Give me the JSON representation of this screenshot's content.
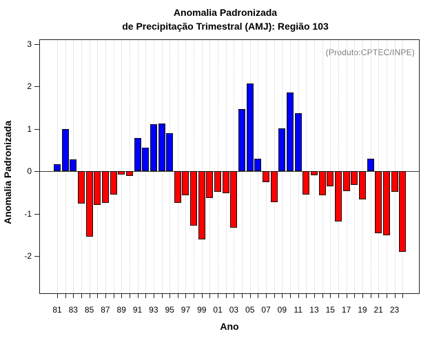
{
  "title": {
    "line1": "Anomalia Padronizada",
    "line2": "de Precipitação Trimestral (AMJ): Região 103"
  },
  "annotation": "(Produto:CPTEC/INPE)",
  "axes": {
    "y_label": "Anomalia Padronizada",
    "x_label": "Ano",
    "y_ticks": [
      3,
      2,
      1,
      0,
      -1,
      -2
    ],
    "x_tick_labels": [
      "81",
      "83",
      "85",
      "87",
      "89",
      "91",
      "93",
      "95",
      "97",
      "99",
      "01",
      "03",
      "05",
      "07",
      "09",
      "11",
      "13",
      "15",
      "17",
      "19",
      "21",
      "23"
    ]
  },
  "colors": {
    "positive": "#0000FF",
    "negative": "#FF0000",
    "annotation": "#7a7a7a",
    "grid": "#d2d2d2",
    "axis": "#222222"
  },
  "chart_data": {
    "type": "bar",
    "title": "Anomalia Padronizada de Precipitação Trimestral (AMJ): Região 103",
    "xlabel": "Ano",
    "ylabel": "Anomalia Padronizada",
    "ylim": [
      -2.9,
      3.1
    ],
    "grid": "vertical-dotted",
    "legend_position": "none",
    "x": [
      1981,
      1982,
      1983,
      1984,
      1985,
      1986,
      1987,
      1988,
      1989,
      1990,
      1991,
      1992,
      1993,
      1994,
      1995,
      1996,
      1997,
      1998,
      1999,
      2000,
      2001,
      2002,
      2003,
      2004,
      2005,
      2006,
      2007,
      2008,
      2009,
      2010,
      2011,
      2012,
      2013,
      2014,
      2015,
      2016,
      2017,
      2018,
      2019,
      2020,
      2021,
      2022,
      2023,
      2024
    ],
    "values": [
      0.17,
      0.99,
      0.28,
      -0.76,
      -1.54,
      -0.79,
      -0.75,
      -0.56,
      -0.08,
      -0.12,
      0.78,
      0.56,
      1.11,
      1.13,
      0.9,
      -0.74,
      -0.57,
      -1.29,
      -1.61,
      -0.63,
      -0.49,
      -0.52,
      -1.33,
      1.47,
      2.07,
      0.29,
      -0.26,
      -0.73,
      1.01,
      1.86,
      1.36,
      -0.56,
      -0.1,
      -0.57,
      -0.36,
      -1.18,
      -0.47,
      -0.33,
      -0.67,
      0.3,
      -1.47,
      -1.52,
      -0.49,
      -1.9
    ]
  }
}
